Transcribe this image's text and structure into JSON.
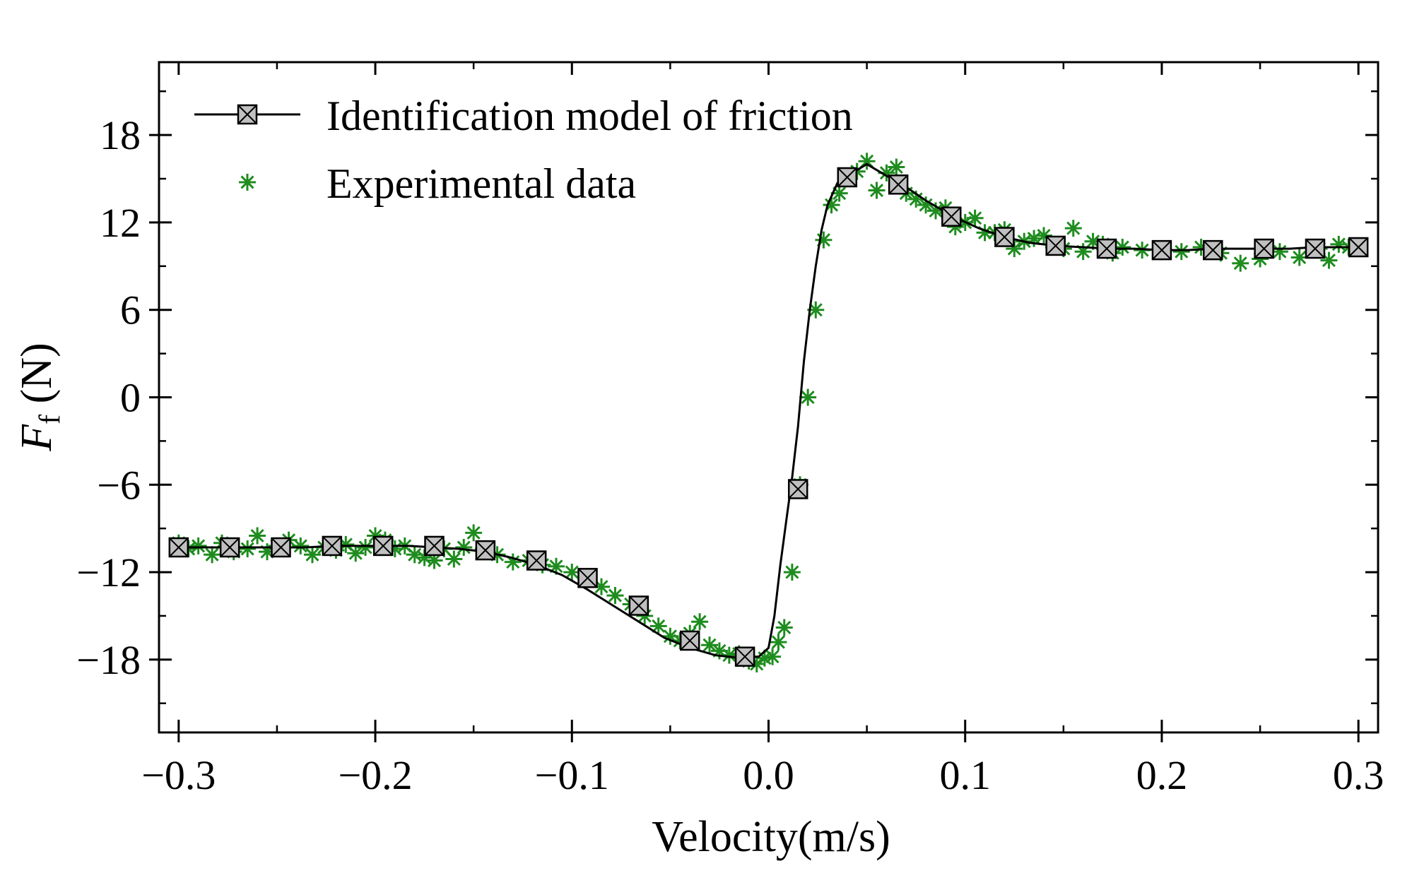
{
  "chart_data": {
    "type": "line",
    "title": "",
    "xlabel": "Velocity(m/s)",
    "ylabel": "F",
    "ylabel_subscript": "f",
    "ylabel_unit": " (N)",
    "xlim": [
      -0.31,
      0.31
    ],
    "ylim": [
      -23,
      23
    ],
    "x_ticks": [
      -0.3,
      -0.2,
      -0.1,
      0.0,
      0.1,
      0.2,
      0.3
    ],
    "x_tick_labels": [
      "−0.3",
      "−0.2",
      "−0.1",
      "0.0",
      "0.1",
      "0.2",
      "0.3"
    ],
    "y_ticks": [
      18,
      12,
      6,
      0,
      -6,
      -12,
      -18
    ],
    "y_tick_labels": [
      "18",
      "12",
      "6",
      "0",
      "−6",
      "−12",
      "−18"
    ],
    "grid": false,
    "legend_position": "top-left",
    "colors": {
      "model": "#000000",
      "marker_fill": "#c0c0c0",
      "experimental": "#1e8c1e"
    },
    "series": [
      {
        "name": "Identification model of friction",
        "style": "line-with-square-x-markers",
        "x": [
          -0.3,
          -0.288,
          -0.275,
          -0.261,
          -0.248,
          -0.235,
          -0.222,
          -0.209,
          -0.196,
          -0.183,
          -0.17,
          -0.157,
          -0.144,
          -0.131,
          -0.118,
          -0.105,
          -0.092,
          -0.079,
          -0.066,
          -0.053,
          -0.04,
          -0.027,
          -0.014,
          -0.005,
          0.0,
          0.003,
          0.006,
          0.009,
          0.012,
          0.015,
          0.018,
          0.021,
          0.024,
          0.027,
          0.03,
          0.035,
          0.04,
          0.05,
          0.06,
          0.067,
          0.08,
          0.094,
          0.107,
          0.12,
          0.133,
          0.146,
          0.16,
          0.173,
          0.186,
          0.2,
          0.213,
          0.226,
          0.239,
          0.252,
          0.265,
          0.278,
          0.29,
          0.3
        ],
        "y": [
          -10.3,
          -10.3,
          -10.3,
          -10.3,
          -10.3,
          -10.3,
          -10.2,
          -10.2,
          -10.2,
          -10.2,
          -10.3,
          -10.4,
          -10.6,
          -11.0,
          -11.5,
          -12.2,
          -13.2,
          -14.3,
          -15.4,
          -16.5,
          -17.2,
          -17.7,
          -17.9,
          -17.8,
          -17.2,
          -15.0,
          -11.5,
          -8.5,
          -5.5,
          -2.0,
          2.5,
          6.0,
          9.0,
          11.5,
          13.2,
          14.7,
          15.2,
          16.0,
          15.2,
          14.7,
          13.5,
          12.4,
          11.6,
          11.0,
          10.6,
          10.4,
          10.3,
          10.2,
          10.2,
          10.1,
          10.1,
          10.2,
          10.2,
          10.2,
          10.2,
          10.3,
          10.3,
          10.3
        ],
        "marker_x": [
          -0.3,
          -0.274,
          -0.248,
          -0.222,
          -0.196,
          -0.17,
          -0.144,
          -0.118,
          -0.092,
          -0.066,
          -0.04,
          -0.012,
          0.015,
          0.04,
          0.066,
          0.093,
          0.12,
          0.146,
          0.172,
          0.2,
          0.226,
          0.252,
          0.278,
          0.3
        ],
        "marker_y": [
          -10.3,
          -10.3,
          -10.3,
          -10.2,
          -10.2,
          -10.2,
          -10.5,
          -11.2,
          -12.4,
          -14.3,
          -16.7,
          -17.8,
          -6.3,
          15.1,
          14.6,
          12.4,
          11.0,
          10.4,
          10.2,
          10.1,
          10.1,
          10.2,
          10.2,
          10.3
        ]
      },
      {
        "name": "Experimental data",
        "style": "asterisk",
        "x": [
          -0.3,
          -0.295,
          -0.29,
          -0.283,
          -0.278,
          -0.272,
          -0.265,
          -0.26,
          -0.255,
          -0.25,
          -0.244,
          -0.238,
          -0.232,
          -0.226,
          -0.22,
          -0.215,
          -0.21,
          -0.205,
          -0.2,
          -0.195,
          -0.19,
          -0.185,
          -0.18,
          -0.175,
          -0.17,
          -0.165,
          -0.16,
          -0.155,
          -0.15,
          -0.145,
          -0.138,
          -0.13,
          -0.122,
          -0.115,
          -0.108,
          -0.1,
          -0.092,
          -0.085,
          -0.078,
          -0.07,
          -0.063,
          -0.056,
          -0.05,
          -0.045,
          -0.04,
          -0.035,
          -0.03,
          -0.025,
          -0.02,
          -0.015,
          -0.01,
          -0.006,
          -0.002,
          0.002,
          0.005,
          0.008,
          0.012,
          0.016,
          0.02,
          0.024,
          0.028,
          0.032,
          0.036,
          0.04,
          0.045,
          0.05,
          0.055,
          0.06,
          0.065,
          0.07,
          0.075,
          0.08,
          0.085,
          0.09,
          0.095,
          0.1,
          0.105,
          0.11,
          0.115,
          0.12,
          0.125,
          0.13,
          0.135,
          0.14,
          0.145,
          0.15,
          0.155,
          0.16,
          0.165,
          0.17,
          0.175,
          0.18,
          0.19,
          0.2,
          0.21,
          0.22,
          0.23,
          0.24,
          0.25,
          0.26,
          0.27,
          0.28,
          0.285,
          0.29,
          0.295
        ],
        "y": [
          -10.0,
          -10.4,
          -10.2,
          -10.8,
          -10.0,
          -10.6,
          -10.4,
          -9.5,
          -10.6,
          -10.2,
          -9.8,
          -10.2,
          -10.8,
          -10.3,
          -10.5,
          -10.1,
          -10.7,
          -10.3,
          -9.5,
          -9.8,
          -10.4,
          -10.2,
          -10.8,
          -11.0,
          -11.2,
          -10.4,
          -11.1,
          -10.3,
          -9.3,
          -10.4,
          -10.8,
          -11.3,
          -11.2,
          -11.5,
          -11.6,
          -12.0,
          -12.4,
          -13.0,
          -13.6,
          -14.2,
          -15.0,
          -15.7,
          -16.4,
          -16.7,
          -16.2,
          -15.4,
          -17.0,
          -17.4,
          -17.7,
          -17.6,
          -18.1,
          -18.3,
          -17.9,
          -17.8,
          -16.8,
          -15.8,
          -12.0,
          -6.0,
          0.0,
          6.0,
          10.8,
          13.2,
          14.0,
          15.0,
          15.5,
          16.2,
          14.2,
          15.4,
          15.8,
          14.0,
          13.6,
          13.2,
          12.8,
          13.0,
          11.7,
          12.0,
          12.3,
          11.3,
          11.3,
          11.5,
          10.2,
          10.7,
          10.9,
          11.1,
          10.3,
          10.2,
          11.6,
          10.0,
          10.7,
          10.5,
          9.9,
          10.3,
          10.1,
          10.0,
          10.0,
          10.3,
          9.9,
          9.2,
          9.5,
          10.0,
          9.6,
          10.2,
          9.4,
          10.5,
          10.3
        ]
      }
    ]
  }
}
